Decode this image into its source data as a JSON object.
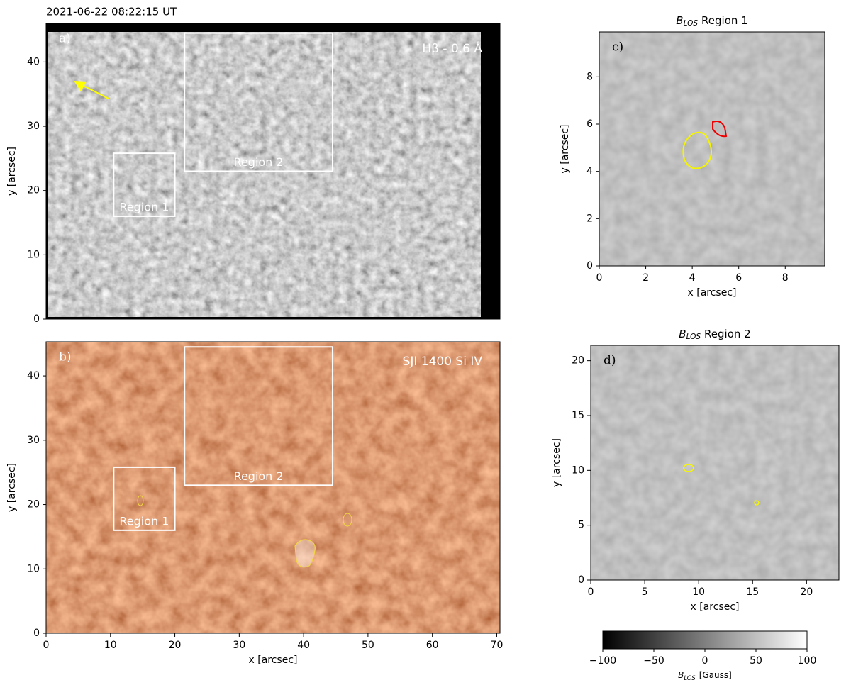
{
  "chart_data": [
    {
      "type": "image",
      "timestamp": "2021-06-22 08:22:15 UT",
      "label": "a)",
      "annotation": "Hβ - 0.6 Å",
      "xlim": [
        0,
        70.5
      ],
      "ylim": [
        0,
        46
      ],
      "yticks": [
        0,
        10,
        20,
        30,
        40
      ],
      "ylabel": "y [arcsec]",
      "regions": [
        {
          "label": "Region 1",
          "x": [
            10.5,
            20
          ],
          "y": [
            16,
            25.8
          ]
        },
        {
          "label": "Region 2",
          "x": [
            21.5,
            44.5
          ],
          "y": [
            23,
            44.5
          ]
        }
      ]
    },
    {
      "type": "image",
      "label": "b)",
      "annotation": "SJI 1400 Si IV",
      "xlim": [
        0,
        70.5
      ],
      "ylim": [
        0,
        45.3
      ],
      "xticks": [
        0,
        10,
        20,
        30,
        40,
        50,
        60,
        70
      ],
      "yticks": [
        0,
        10,
        20,
        30,
        40
      ],
      "xlabel": "x [arcsec]",
      "ylabel": "y [arcsec]",
      "regions": [
        {
          "label": "Region 1",
          "x": [
            10.5,
            20
          ],
          "y": [
            16,
            25.8
          ]
        },
        {
          "label": "Region 2",
          "x": [
            21.5,
            44.5
          ],
          "y": [
            23,
            44.5
          ]
        }
      ]
    },
    {
      "type": "image",
      "title_symbol": "B",
      "title_sub": "LOS",
      "title_rest": "Region 1",
      "label": "c)",
      "xlim": [
        0,
        9.7
      ],
      "ylim": [
        0,
        9.9
      ],
      "xticks": [
        0,
        2,
        4,
        6,
        8
      ],
      "yticks": [
        0,
        2,
        4,
        6,
        8
      ],
      "xlabel": "x [arcsec]",
      "ylabel": "y [arcsec]"
    },
    {
      "type": "image",
      "title_symbol": "B",
      "title_sub": "LOS",
      "title_rest": "Region 2",
      "label": "d)",
      "xlim": [
        0,
        23
      ],
      "ylim": [
        0,
        21.4
      ],
      "xticks": [
        0,
        5,
        10,
        15,
        20
      ],
      "yticks": [
        0,
        5,
        10,
        15,
        20
      ],
      "xlabel": "x [arcsec]",
      "ylabel": "y [arcsec]"
    },
    {
      "type": "colorbar",
      "lim": [
        -100,
        100
      ],
      "ticks": [
        {
          "value": -100,
          "label": "−100"
        },
        {
          "value": -50,
          "label": "−50"
        },
        0,
        50,
        100
      ],
      "label_symbol": "B",
      "label_sub": "LOS",
      "label_rest": "[Gauss]"
    }
  ]
}
